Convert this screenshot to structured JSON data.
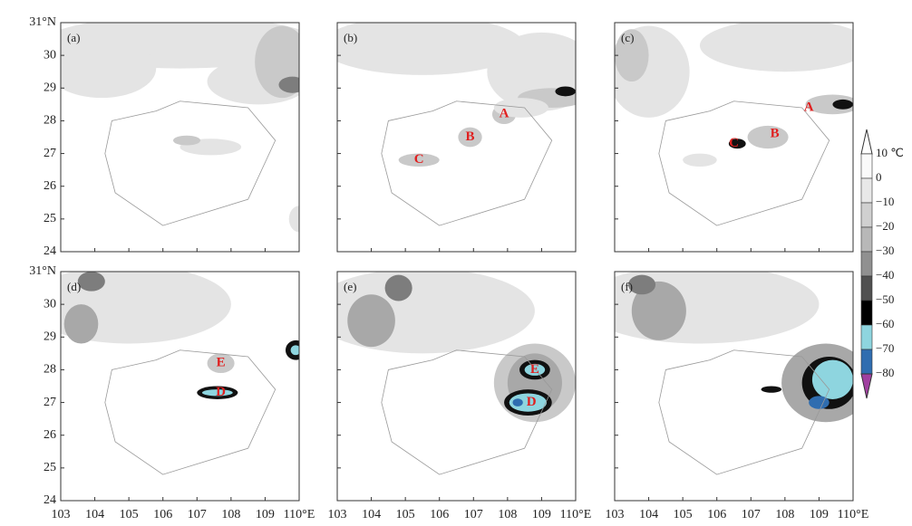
{
  "y_axis_labels": [
    "31°N",
    "30",
    "29",
    "28",
    "27",
    "26",
    "25",
    "24"
  ],
  "x_axis_labels": [
    "103",
    "104",
    "105",
    "106",
    "107",
    "108",
    "109",
    "110°E"
  ],
  "panels": [
    {
      "label": "(a)",
      "markers": []
    },
    {
      "label": "(b)",
      "markers": [
        "A",
        "B",
        "C"
      ]
    },
    {
      "label": "(c)",
      "markers": [
        "A",
        "B",
        "C"
      ]
    },
    {
      "label": "(d)",
      "markers": [
        "E",
        "D"
      ]
    },
    {
      "label": "(e)",
      "markers": [
        "E",
        "D"
      ]
    },
    {
      "label": "(f)",
      "markers": []
    }
  ],
  "colorbar": {
    "labels": [
      "10 ℃",
      "0",
      "−10",
      "−20",
      "−30",
      "−40",
      "−50",
      "−60",
      "−70",
      "−80"
    ]
  }
}
